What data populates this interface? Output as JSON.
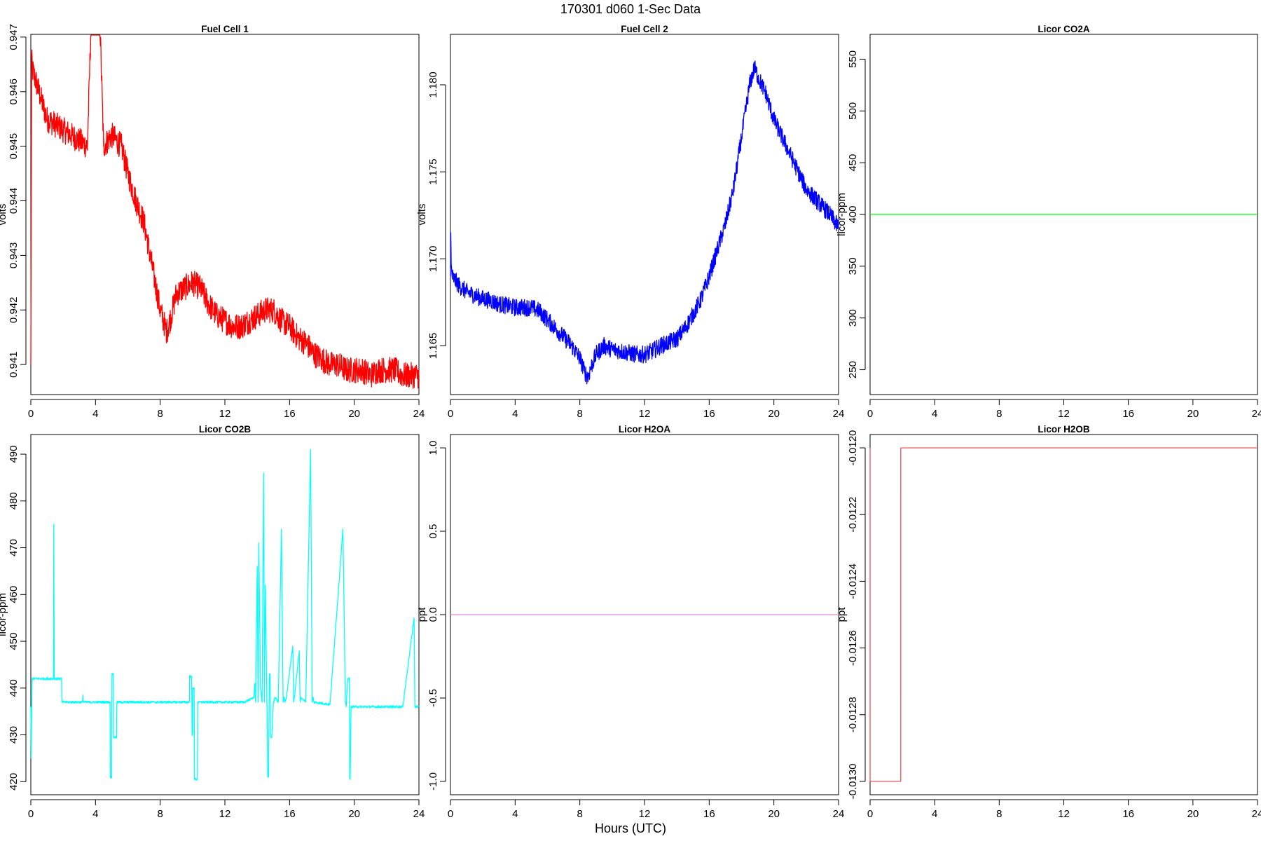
{
  "figure": {
    "title": "170301   d060   1-Sec Data",
    "xlabel": "Hours (UTC)"
  },
  "chart_data": [
    {
      "type": "line",
      "title": "Fuel Cell 1",
      "ylabel": "volts",
      "color": "#ff0000",
      "xlim": [
        0,
        24
      ],
      "ylim": [
        0.94045,
        0.94705
      ],
      "xticks": [
        0,
        4,
        8,
        12,
        16,
        20,
        24
      ],
      "yticks": [
        0.941,
        0.942,
        0.943,
        0.944,
        0.945,
        0.946,
        0.947
      ],
      "ytick_labels": [
        "0.941",
        "0.942",
        "0.943",
        "0.944",
        "0.945",
        "0.946",
        "0.947"
      ],
      "noise": 0.00024,
      "x": [
        0,
        0.05,
        0.1,
        0.3,
        0.6,
        1,
        1.5,
        2,
        2.5,
        3,
        3.5,
        4,
        4.5,
        5,
        5.3,
        5.6,
        6,
        6.5,
        7,
        7.5,
        8,
        8.2,
        8.4,
        8.6,
        9,
        9.5,
        10,
        10.5,
        11,
        11.5,
        12,
        12.5,
        13,
        13.5,
        14,
        14.5,
        15,
        15.5,
        16,
        16.5,
        17,
        17.5,
        18,
        18.5,
        19,
        19.5,
        20,
        20.5,
        21,
        21.5,
        22,
        22.5,
        23,
        23.5,
        24
      ],
      "y": [
        0.941,
        0.9466,
        0.9464,
        0.9462,
        0.9459,
        0.9455,
        0.9454,
        0.9453,
        0.9452,
        0.9451,
        0.945,
        0.95,
        0.945,
        0.9452,
        0.9451,
        0.945,
        0.9445,
        0.944,
        0.9436,
        0.9428,
        0.942,
        0.9418,
        0.9416,
        0.9418,
        0.9423,
        0.9424,
        0.9425,
        0.9424,
        0.9421,
        0.9419,
        0.9418,
        0.9417,
        0.9417,
        0.9418,
        0.9419,
        0.942,
        0.942,
        0.9418,
        0.9417,
        0.9415,
        0.9414,
        0.9412,
        0.9411,
        0.941,
        0.941,
        0.9409,
        0.9409,
        0.9409,
        0.9408,
        0.9409,
        0.9409,
        0.9409,
        0.9408,
        0.9408,
        0.9408
      ]
    },
    {
      "type": "line",
      "title": "Fuel Cell 2",
      "ylabel": "volts",
      "color": "#0000ff",
      "xlim": [
        0,
        24
      ],
      "ylim": [
        1.1622,
        1.1829
      ],
      "xticks": [
        0,
        4,
        8,
        12,
        16,
        20,
        24
      ],
      "yticks": [
        1.165,
        1.17,
        1.175,
        1.18
      ],
      "ytick_labels": [
        "1.165",
        "1.170",
        "1.175",
        "1.180"
      ],
      "noise": 0.0005,
      "x": [
        0,
        0.02,
        0.05,
        0.1,
        0.5,
        1,
        1.5,
        2,
        2.5,
        3,
        3.5,
        4,
        4.5,
        5,
        5.5,
        6,
        6.5,
        7,
        7.5,
        8,
        8.3,
        8.5,
        8.7,
        9,
        9.5,
        10,
        10.5,
        11,
        11.5,
        12,
        12.5,
        13,
        13.5,
        14,
        14.5,
        15,
        15.5,
        16,
        16.5,
        17,
        17.5,
        18,
        18.5,
        18.8,
        19,
        19.5,
        20,
        20.5,
        21,
        21.5,
        22,
        22.5,
        23,
        23.5,
        24
      ],
      "y": [
        1.169,
        1.1715,
        1.1695,
        1.169,
        1.1685,
        1.1681,
        1.1679,
        1.1677,
        1.1676,
        1.1674,
        1.1673,
        1.1672,
        1.1672,
        1.1672,
        1.167,
        1.1665,
        1.166,
        1.1655,
        1.165,
        1.1643,
        1.1635,
        1.1632,
        1.1638,
        1.1645,
        1.165,
        1.1648,
        1.1647,
        1.1646,
        1.1645,
        1.1645,
        1.1647,
        1.165,
        1.1652,
        1.1654,
        1.166,
        1.1668,
        1.1677,
        1.169,
        1.1705,
        1.172,
        1.174,
        1.177,
        1.18,
        1.181,
        1.1805,
        1.1795,
        1.178,
        1.177,
        1.176,
        1.175,
        1.174,
        1.1735,
        1.173,
        1.1725,
        1.1718
      ]
    },
    {
      "type": "line",
      "title": "Licor CO2A",
      "ylabel": "licor-ppm",
      "color": "#00ff00",
      "xlim": [
        0,
        24
      ],
      "ylim": [
        226,
        574
      ],
      "xticks": [
        0,
        4,
        8,
        12,
        16,
        20,
        24
      ],
      "yticks": [
        250,
        300,
        350,
        400,
        450,
        500,
        550
      ],
      "ytick_labels": [
        "250",
        "300",
        "350",
        "400",
        "450",
        "500",
        "550"
      ],
      "noise": 0,
      "x": [
        0,
        24
      ],
      "y": [
        400,
        400
      ]
    },
    {
      "type": "line",
      "title": "Licor CO2B",
      "ylabel": "licor-ppm",
      "color": "#00ffff",
      "xlim": [
        0,
        24
      ],
      "ylim": [
        417.2,
        494.2
      ],
      "xticks": [
        0,
        4,
        8,
        12,
        16,
        20,
        24
      ],
      "yticks": [
        420,
        430,
        440,
        450,
        460,
        470,
        480,
        490
      ],
      "ytick_labels": [
        "420",
        "430",
        "440",
        "450",
        "460",
        "470",
        "480",
        "490"
      ],
      "noise": 0.25,
      "x": [
        0,
        0.02,
        0.06,
        0.08,
        0.1,
        0.12,
        1.4,
        1.42,
        1.45,
        1.5,
        1.9,
        1.92,
        3.2,
        3.22,
        3.24,
        4.9,
        4.92,
        5.0,
        5.02,
        5.1,
        5.12,
        5.3,
        5.32,
        9.8,
        9.82,
        9.95,
        9.97,
        10.0,
        10.02,
        10.1,
        10.12,
        10.3,
        10.32,
        13.2,
        13.5,
        13.8,
        13.85,
        13.9,
        14.0,
        14.05,
        14.1,
        14.2,
        14.3,
        14.4,
        14.45,
        14.5,
        14.6,
        14.65,
        14.7,
        14.75,
        14.8,
        14.82,
        14.9,
        15.0,
        15.02,
        15.1,
        15.3,
        15.5,
        15.6,
        15.65,
        15.7,
        15.8,
        16.2,
        16.25,
        16.3,
        16.6,
        16.65,
        16.7,
        17.0,
        17.3,
        17.4,
        17.45,
        17.5,
        18.5,
        19.3,
        19.4,
        19.45,
        19.5,
        19.6,
        19.7,
        19.72,
        19.75,
        19.8,
        19.9,
        19.92,
        20.0,
        20.02,
        20.1,
        20.2,
        21.5,
        22.0,
        23.0,
        23.7,
        23.75,
        23.8,
        24.0
      ],
      "y": [
        436,
        425,
        436,
        442,
        442,
        442,
        442,
        475,
        442,
        442,
        442,
        437,
        437,
        438.5,
        437,
        437,
        421,
        421,
        443,
        443,
        429.5,
        429.5,
        437,
        437,
        442.5,
        442.5,
        430,
        430,
        440,
        440,
        420.5,
        420.5,
        437,
        437,
        437.5,
        438,
        441,
        437,
        466,
        437,
        471,
        440,
        437,
        486,
        437,
        462,
        437,
        421,
        421,
        443,
        443,
        429.5,
        429.5,
        437,
        437,
        438,
        437,
        474,
        437,
        438,
        437,
        438,
        449,
        437,
        438,
        448,
        437,
        438,
        437,
        491,
        437,
        438,
        437,
        436.5,
        474,
        450,
        437,
        436,
        442,
        442,
        420.5,
        420.5,
        436,
        436,
        436,
        436,
        436,
        436,
        436,
        436,
        436,
        436,
        455,
        436,
        436,
        436
      ]
    },
    {
      "type": "line",
      "title": "Licor H2OA",
      "ylabel": "ppt",
      "color": "#dd88dd",
      "xlim": [
        0,
        24
      ],
      "ylim": [
        -1.08,
        1.08
      ],
      "xticks": [
        0,
        4,
        8,
        12,
        16,
        20,
        24
      ],
      "yticks": [
        -1.0,
        -0.5,
        0.0,
        0.5,
        1.0
      ],
      "ytick_labels": [
        "-1.0",
        "-0.5",
        "0.0",
        "0.5",
        "1.0"
      ],
      "noise": 0,
      "x": [
        0,
        24
      ],
      "y": [
        0,
        0
      ]
    },
    {
      "type": "line",
      "title": "Licor H2OB",
      "ylabel": "ppt",
      "color": "#ee4444",
      "xlim": [
        0,
        24
      ],
      "ylim": [
        -0.01304,
        -0.01196
      ],
      "xticks": [
        0,
        4,
        8,
        12,
        16,
        20,
        24
      ],
      "yticks": [
        -0.013,
        -0.0128,
        -0.0126,
        -0.0124,
        -0.0122,
        -0.012
      ],
      "ytick_labels": [
        "-0.0130",
        "-0.0128",
        "-0.0126",
        "-0.0124",
        "-0.0122",
        "-0.0120"
      ],
      "noise": 0,
      "x": [
        0,
        0.001,
        1.9,
        1.901,
        24
      ],
      "y": [
        -0.012,
        -0.013,
        -0.013,
        -0.012,
        -0.012
      ]
    }
  ]
}
